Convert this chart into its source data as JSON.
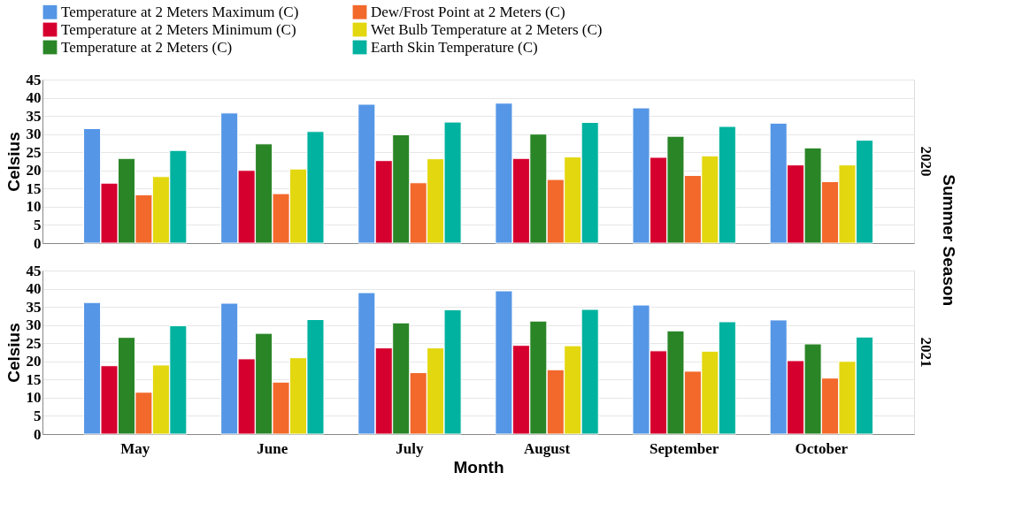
{
  "chart_data": [
    {
      "type": "bar",
      "title": "2020",
      "ylabel": "Celsius",
      "categories": [
        null,
        null,
        null,
        null,
        null,
        null
      ],
      "ylim": [
        0,
        45
      ],
      "yticks": [
        0,
        5,
        10,
        15,
        20,
        25,
        30,
        35,
        40,
        45
      ],
      "grid": "y",
      "legend": "top",
      "tick_labels": "y",
      "annotations": [
        "Summer Season"
      ],
      "series": [
        {
          "name": "Temperature at 2 Meters Maximum (C)",
          "color": "#5596e6",
          "values": [
            31.5,
            35.8,
            38.2,
            38.5,
            37.2,
            33.0
          ]
        },
        {
          "name": "Temperature at 2 Meters Minimum (C)",
          "color": "#d6002f",
          "values": [
            16.5,
            20.0,
            22.7,
            23.3,
            23.6,
            21.5
          ]
        },
        {
          "name": "Temperature at 2 Meters (C)",
          "color": "#2a8527",
          "values": [
            23.3,
            27.3,
            29.8,
            30.0,
            29.4,
            26.2
          ]
        },
        {
          "name": "Dew/Frost Point at 2 Meters (C)",
          "color": "#f2692b",
          "values": [
            13.3,
            13.6,
            16.6,
            17.5,
            18.6,
            16.9
          ]
        },
        {
          "name": "Wet Bulb Temperature at 2 Meters (C)",
          "color": "#e3d70f",
          "values": [
            18.3,
            20.4,
            23.2,
            23.7,
            24.0,
            21.5
          ]
        },
        {
          "name": "Earth Skin Temperature (C)",
          "color": "#00b29f",
          "values": [
            25.5,
            30.7,
            33.3,
            33.2,
            32.1,
            28.3
          ]
        }
      ]
    },
    {
      "type": "bar",
      "title": "2021",
      "ylabel": "Celsius",
      "xlabel": "Month",
      "categories": [
        "May",
        "June",
        "July",
        "August",
        "September",
        "October"
      ],
      "ylim": [
        0,
        45
      ],
      "yticks": [
        0,
        5,
        10,
        15,
        20,
        25,
        30,
        35,
        40,
        45
      ],
      "grid": "y",
      "legend": "top",
      "series": [
        {
          "name": "Temperature at 2 Meters Maximum (C)",
          "color": "#5596e6",
          "values": [
            36.2,
            36.0,
            38.9,
            39.4,
            35.5,
            31.4
          ]
        },
        {
          "name": "Temperature at 2 Meters Minimum (C)",
          "color": "#d6002f",
          "values": [
            18.8,
            20.7,
            23.7,
            24.4,
            22.9,
            20.2
          ]
        },
        {
          "name": "Temperature at 2 Meters (C)",
          "color": "#2a8527",
          "values": [
            26.6,
            27.7,
            30.6,
            31.1,
            28.4,
            24.8
          ]
        },
        {
          "name": "Dew/Frost Point at 2 Meters (C)",
          "color": "#f2692b",
          "values": [
            11.5,
            14.3,
            16.9,
            17.7,
            17.3,
            15.4
          ]
        },
        {
          "name": "Wet Bulb Temperature at 2 Meters (C)",
          "color": "#e3d70f",
          "values": [
            19.0,
            21.0,
            23.7,
            24.3,
            22.8,
            20.0
          ]
        },
        {
          "name": "Earth Skin Temperature (C)",
          "color": "#00b29f",
          "values": [
            29.8,
            31.5,
            34.2,
            34.3,
            30.9,
            26.7
          ]
        }
      ]
    }
  ]
}
